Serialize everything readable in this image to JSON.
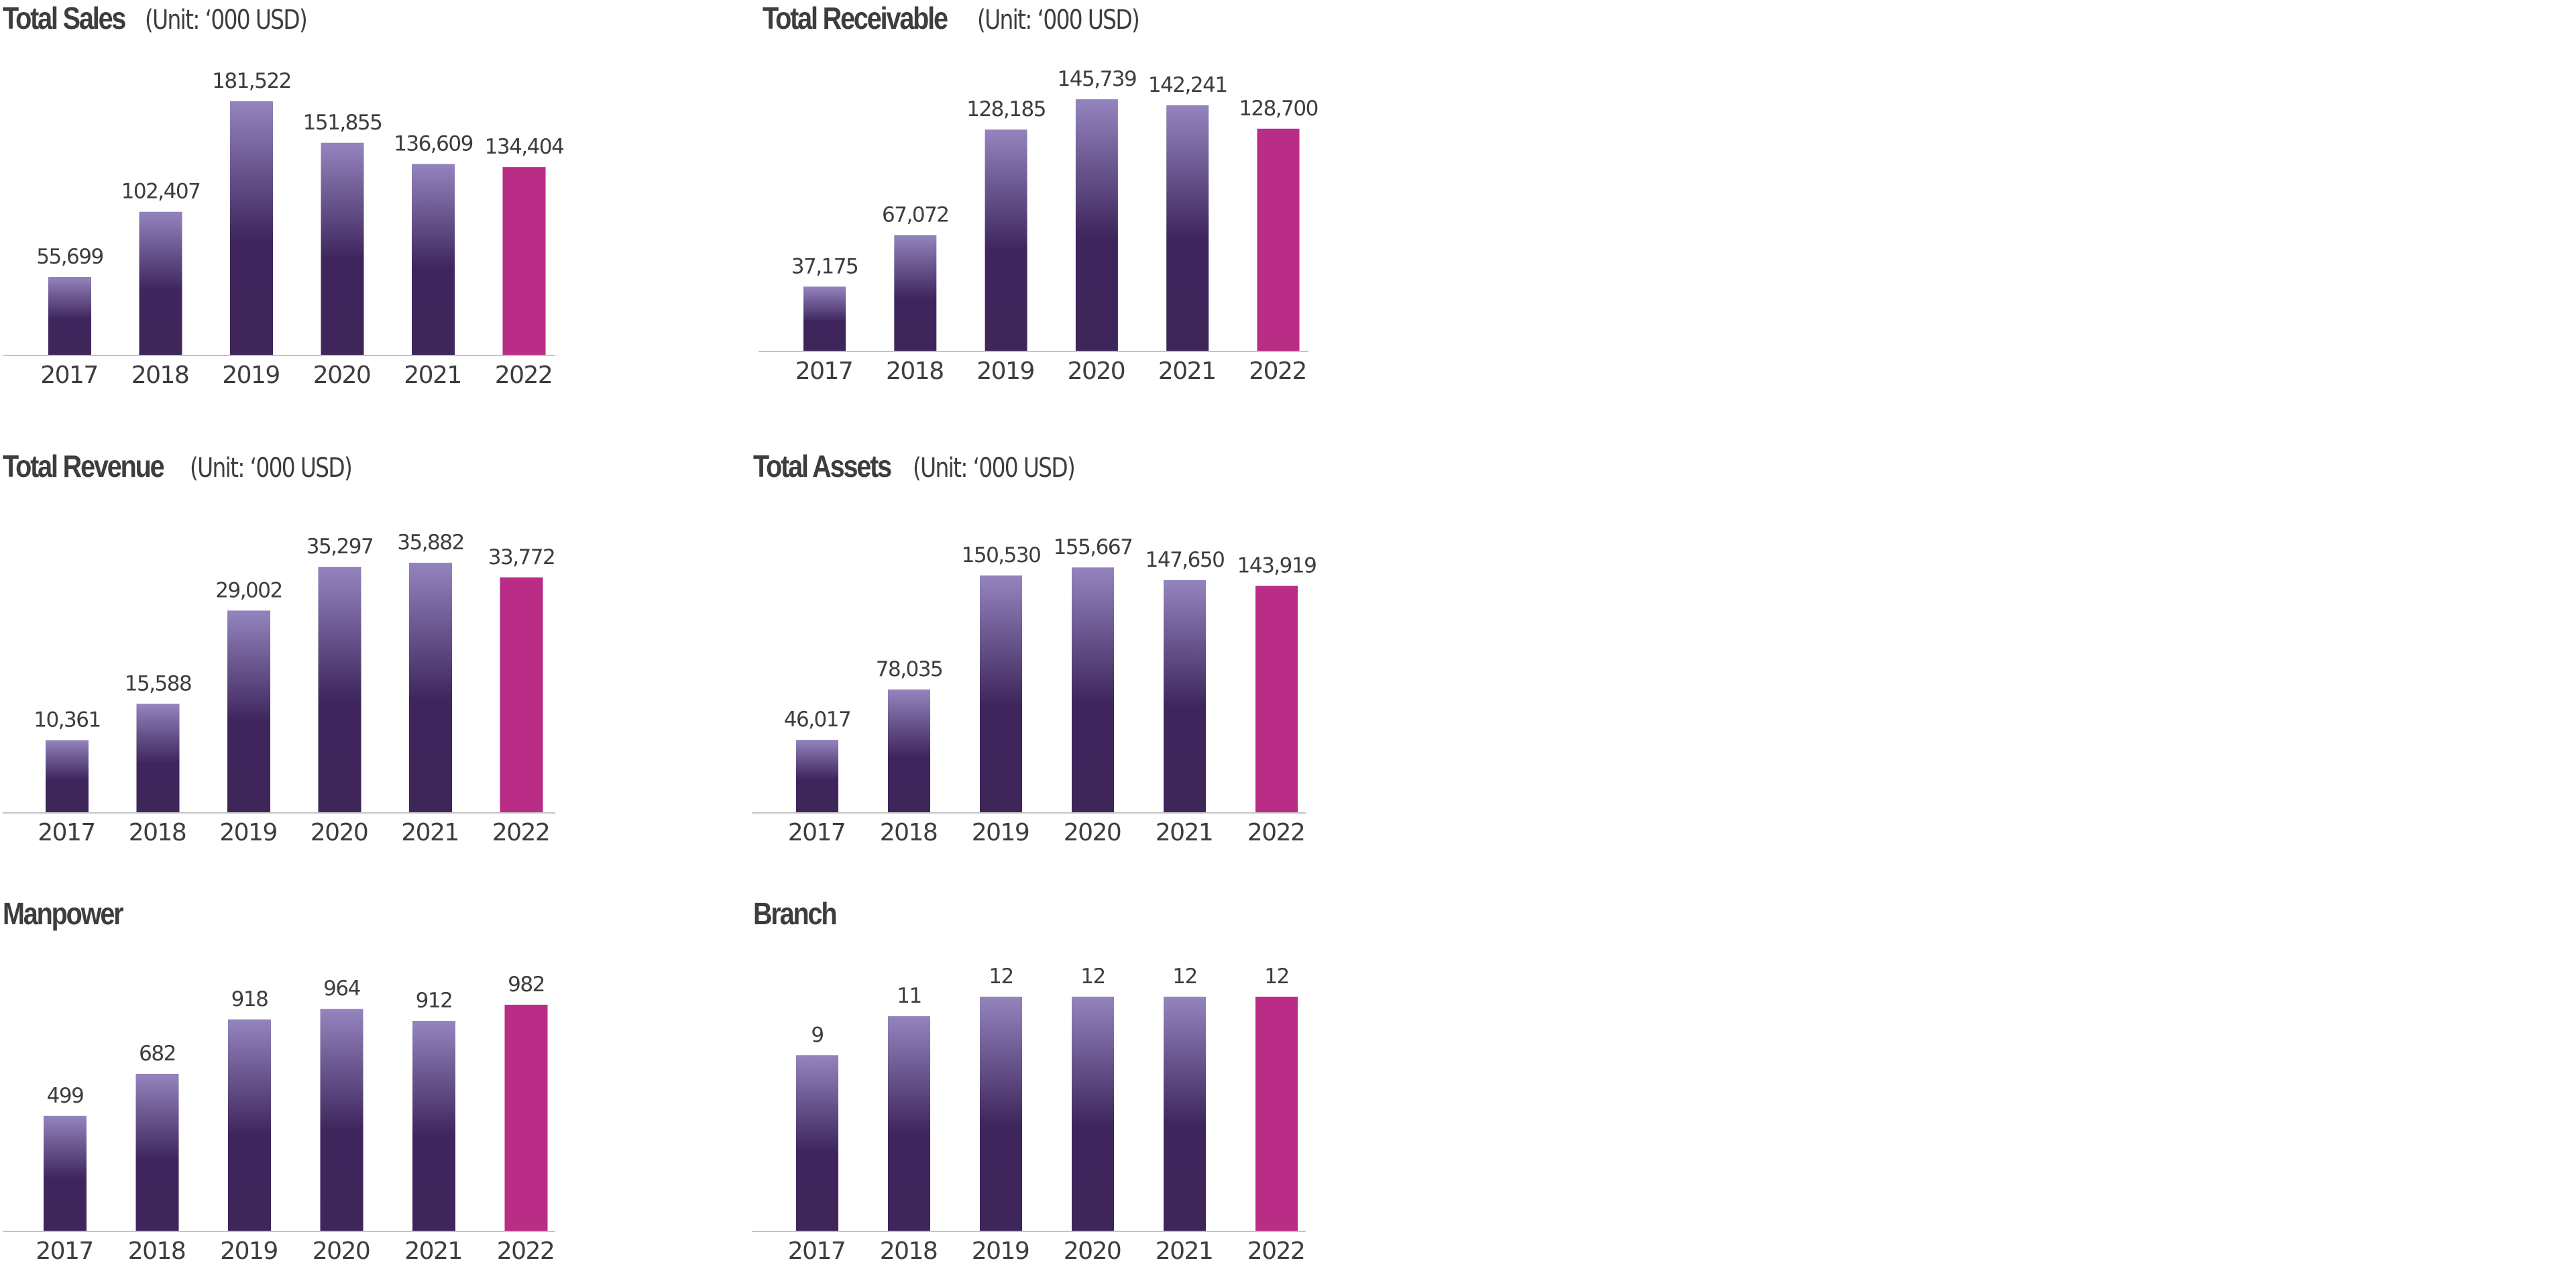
{
  "colors": {
    "bar_top": "#9484be",
    "bar_mid": "#3e265c",
    "bar_bottom": "#3e265b",
    "highlight": "#b92d86",
    "axis": "#c4c4c4",
    "text": "#3d3d3f"
  },
  "chart_data": [
    {
      "id": "total-sales",
      "type": "bar",
      "title": "Total Sales",
      "unit_label": "(Unit: ‘000 USD)",
      "categories": [
        "2017",
        "2018",
        "2019",
        "2020",
        "2021",
        "2022"
      ],
      "values": [
        55699,
        102407,
        181522,
        151855,
        136609,
        134404
      ],
      "value_labels": [
        "55,699",
        "102,407",
        "181,522",
        "151,855",
        "136,609",
        "134,404"
      ],
      "highlight_category": "2022",
      "xlabel": "",
      "ylabel": "",
      "ylim": [
        0,
        181522
      ],
      "grid": false,
      "legend": "none"
    },
    {
      "id": "total-receivable",
      "type": "bar",
      "title": "Total Receivable",
      "unit_label": "(Unit: ‘000 USD)",
      "categories": [
        "2017",
        "2018",
        "2019",
        "2020",
        "2021",
        "2022"
      ],
      "values": [
        37175,
        67072,
        128185,
        145739,
        142241,
        128700
      ],
      "value_labels": [
        "37,175",
        "67,072",
        "128,185",
        "145,739",
        "142,241",
        "128,700"
      ],
      "highlight_category": "2022",
      "xlabel": "",
      "ylabel": "",
      "ylim": [
        0,
        145739
      ],
      "grid": false,
      "legend": "none"
    },
    {
      "id": "total-revenue",
      "type": "bar",
      "title": "Total Revenue",
      "unit_label": "(Unit: ‘000 USD)",
      "categories": [
        "2017",
        "2018",
        "2019",
        "2020",
        "2021",
        "2022"
      ],
      "values": [
        10361,
        15588,
        29002,
        35297,
        35882,
        33772
      ],
      "value_labels": [
        "10,361",
        "15,588",
        "29,002",
        "35,297",
        "35,882",
        "33,772"
      ],
      "highlight_category": "2022",
      "xlabel": "",
      "ylabel": "",
      "ylim": [
        0,
        35882
      ],
      "grid": false,
      "legend": "none"
    },
    {
      "id": "total-assets",
      "type": "bar",
      "title": "Total Assets",
      "unit_label": "(Unit: ‘000 USD)",
      "categories": [
        "2017",
        "2018",
        "2019",
        "2020",
        "2021",
        "2022"
      ],
      "values": [
        46017,
        78035,
        150530,
        155667,
        147650,
        143919
      ],
      "value_labels": [
        "46,017",
        "78,035",
        "150,530",
        "155,667",
        "147,650",
        "143,919"
      ],
      "highlight_category": "2022",
      "xlabel": "",
      "ylabel": "",
      "ylim": [
        0,
        155667
      ],
      "grid": false,
      "legend": "none"
    },
    {
      "id": "manpower",
      "type": "bar",
      "title": "Manpower",
      "unit_label": "",
      "categories": [
        "2017",
        "2018",
        "2019",
        "2020",
        "2021",
        "2022"
      ],
      "values": [
        499,
        682,
        918,
        964,
        912,
        982
      ],
      "value_labels": [
        "499",
        "682",
        "918",
        "964",
        "912",
        "982"
      ],
      "highlight_category": "2022",
      "xlabel": "",
      "ylabel": "",
      "ylim": [
        0,
        982
      ],
      "grid": false,
      "legend": "none"
    },
    {
      "id": "branch",
      "type": "bar",
      "title": "Branch",
      "unit_label": "",
      "categories": [
        "2017",
        "2018",
        "2019",
        "2020",
        "2021",
        "2022"
      ],
      "values": [
        9,
        11,
        12,
        12,
        12,
        12
      ],
      "value_labels": [
        "9",
        "11",
        "12",
        "12",
        "12",
        "12"
      ],
      "highlight_category": "2022",
      "xlabel": "",
      "ylabel": "",
      "ylim": [
        0,
        12
      ],
      "grid": false,
      "legend": "none"
    }
  ]
}
